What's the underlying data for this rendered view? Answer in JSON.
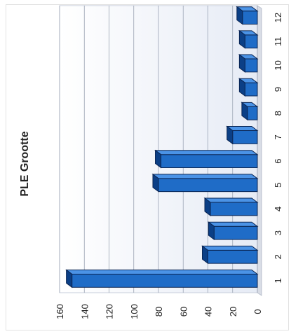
{
  "chart_data": {
    "type": "bar",
    "orientation": "rotated-horizontal-3d",
    "title": "PLE Grootte",
    "categories": [
      "1",
      "2",
      "3",
      "4",
      "5",
      "6",
      "7",
      "8",
      "9",
      "10",
      "11",
      "12"
    ],
    "values": [
      150,
      40,
      35,
      38,
      80,
      78,
      20,
      8,
      10,
      10,
      10,
      12
    ],
    "value_axis": {
      "range": [
        0,
        160
      ],
      "ticks": [
        "0",
        "20",
        "40",
        "60",
        "80",
        "100",
        "120",
        "140",
        "160"
      ]
    },
    "grid": true,
    "legend": "none",
    "colors": {
      "bar_front": "#1f6cc7",
      "bar_top": "#4b93e6",
      "bar_side": "#0b3f86",
      "outline": "#0a2553",
      "plot_bg": "#eef1f8",
      "grid": "#9aa3b3",
      "text": "#222222"
    }
  }
}
